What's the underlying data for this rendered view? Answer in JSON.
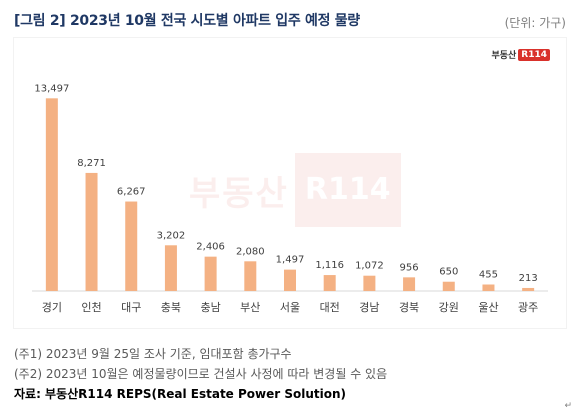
{
  "header": {
    "title": "[그림 2] 2023년 10월 전국 시도별 아파트 입주 예정 물량",
    "unit": "(단위: 가구)"
  },
  "logo": {
    "text": "부동산",
    "badge": "R114"
  },
  "watermark": {
    "text": "부동산",
    "badge": "R114"
  },
  "chart_data": {
    "type": "bar",
    "categories": [
      "경기",
      "인천",
      "대구",
      "충북",
      "충남",
      "부산",
      "서울",
      "대전",
      "경남",
      "경북",
      "강원",
      "울산",
      "광주"
    ],
    "values": [
      13497,
      8271,
      6267,
      3202,
      2406,
      2080,
      1497,
      1116,
      1072,
      956,
      650,
      455,
      213
    ],
    "value_labels": [
      "13,497",
      "8,271",
      "6,267",
      "3,202",
      "2,406",
      "2,080",
      "1,497",
      "1,116",
      "1,072",
      "956",
      "650",
      "455",
      "213"
    ],
    "ylim": [
      0,
      14500
    ],
    "grid": false,
    "bar_color": "#f4b183",
    "axis_color": "#d9d9d9"
  },
  "notes": {
    "note1": "(주1) 2023년 9월 25일 조사 기준, 임대포함 총가구수",
    "note2": "(주2) 2023년 10월은 예정물량이므로 건설사 사정에 따라 변경될 수 있음",
    "source": "자료: 부동산R114 REPS(Real Estate Power Solution)"
  },
  "return_mark": "↵"
}
